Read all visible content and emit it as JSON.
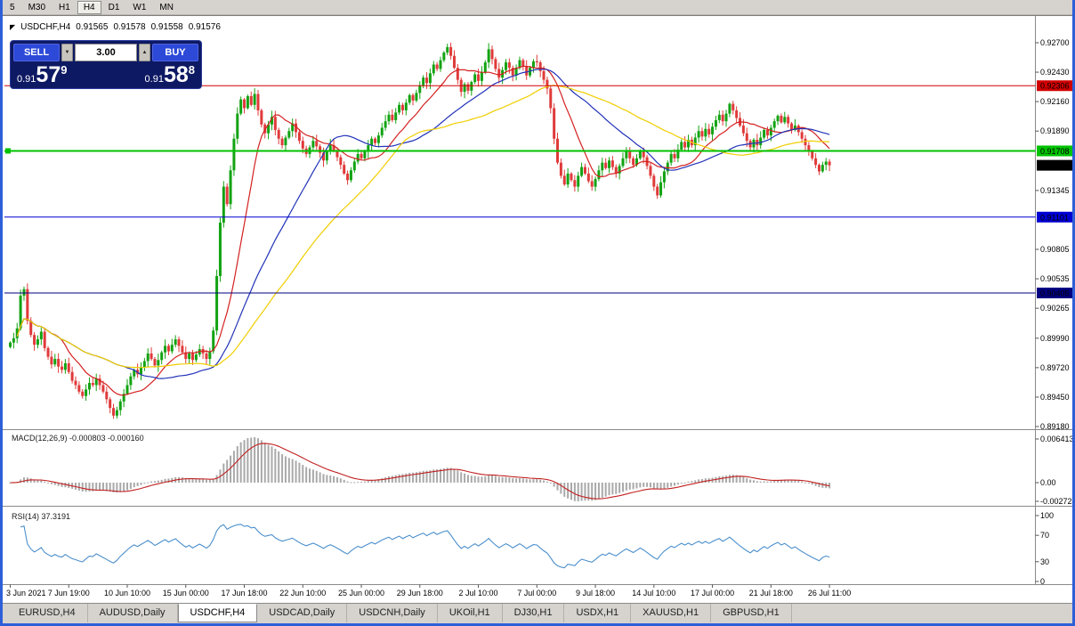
{
  "colors": {
    "frame": "#2e5fd8",
    "candle_up": "#12a312",
    "candle_down": "#e03a3a",
    "ma_fast": "#d42020",
    "ma_mid": "#2233b8",
    "ma_slow": "#f0ce00",
    "macd_histogram": "#a9a9a9",
    "macd_signal": "#c22020",
    "rsi_line": "#4b8fcc",
    "level_red": "#d00000",
    "level_green": "#00c200",
    "level_blue": "#0000d2",
    "level_navy": "#000080",
    "current_price_bg": "#000000"
  },
  "icons": {
    "panel_toggle": "◤",
    "spin_up": "▲",
    "spin_down": "▼"
  },
  "toolbar": {
    "timeframes": [
      "5",
      "M30",
      "H1",
      "H4",
      "D1",
      "W1",
      "MN"
    ],
    "active": "H4"
  },
  "chart": {
    "symbol_period": "USDCHF,H4",
    "ohlc": {
      "open": "0.91565",
      "high": "0.91578",
      "low": "0.91558",
      "close": "0.91576"
    },
    "one_click": {
      "sell_label": "SELL",
      "buy_label": "BUY",
      "volume": "3.00",
      "sell_price": {
        "small": "0.91",
        "big": "57",
        "sup": "9"
      },
      "buy_price": {
        "small": "0.91",
        "big": "58",
        "sup": "8"
      }
    },
    "price_axis_labels": [
      "0.92700",
      "0.92430",
      "0.92160",
      "0.91890",
      "0.91345",
      "0.90805",
      "0.90535",
      "0.90265",
      "0.89990",
      "0.89720",
      "0.89450",
      "0.89180"
    ],
    "time_axis_labels": [
      "3 Jun 2021",
      "7 Jun 19:00",
      "10 Jun 10:00",
      "15 Jun 00:00",
      "17 Jun 18:00",
      "22 Jun 10:00",
      "25 Jun 00:00",
      "29 Jun 18:00",
      "2 Jul 10:00",
      "7 Jul 00:00",
      "9 Jul 18:00",
      "14 Jul 10:00",
      "17 Jul 00:00",
      "21 Jul 18:00",
      "26 Jul 11:00"
    ]
  },
  "indicators": {
    "macd": {
      "label": "MACD(12,26,9) -0.000803 -0.000160",
      "axis_labels": [
        "0.006413",
        "0.00",
        "-0.002724"
      ]
    },
    "rsi": {
      "label": "RSI(14) 37.3191",
      "axis_labels": [
        "100",
        "70",
        "30",
        "0"
      ]
    }
  },
  "tabs": [
    "EURUSD,H4",
    "AUDUSD,Daily",
    "USDCHF,H4",
    "USDCAD,Daily",
    "USDCNH,Daily",
    "UKOil,H1",
    "DJ30,H1",
    "USDX,H1",
    "XAUUSD,H1",
    "GBPUSD,H1"
  ],
  "active_tab": "USDCHF,H4",
  "chart_data": {
    "type": "candlestick",
    "symbol": "USDCHF",
    "timeframe": "H4",
    "ylim": [
      0.8918,
      0.927
    ],
    "x_label_step": 17,
    "closes": [
      0.8995,
      0.8999,
      0.9008,
      0.9038,
      0.9044,
      0.9015,
      0.9002,
      0.8993,
      0.8998,
      0.9005,
      0.899,
      0.8982,
      0.8975,
      0.898,
      0.8973,
      0.897,
      0.8976,
      0.8968,
      0.896,
      0.8956,
      0.895,
      0.8946,
      0.8952,
      0.8958,
      0.8956,
      0.8962,
      0.8956,
      0.895,
      0.8943,
      0.8935,
      0.8928,
      0.8933,
      0.8941,
      0.8948,
      0.8956,
      0.8964,
      0.897,
      0.8966,
      0.8972,
      0.8978,
      0.8985,
      0.898,
      0.8974,
      0.8979,
      0.8986,
      0.8992,
      0.8987,
      0.8993,
      0.8998,
      0.8992,
      0.8986,
      0.898,
      0.8985,
      0.8979,
      0.8984,
      0.8989,
      0.8985,
      0.898,
      0.8987,
      0.9006,
      0.9056,
      0.9105,
      0.9138,
      0.9122,
      0.9153,
      0.9182,
      0.9205,
      0.9218,
      0.921,
      0.9221,
      0.9213,
      0.9223,
      0.9208,
      0.9195,
      0.9187,
      0.9195,
      0.9202,
      0.919,
      0.9182,
      0.9176,
      0.9183,
      0.9189,
      0.9196,
      0.9188,
      0.918,
      0.9173,
      0.9168,
      0.9174,
      0.918,
      0.9175,
      0.9169,
      0.9162,
      0.917,
      0.9176,
      0.9171,
      0.9165,
      0.9158,
      0.915,
      0.9144,
      0.9153,
      0.9161,
      0.9168,
      0.9164,
      0.917,
      0.9176,
      0.9182,
      0.9178,
      0.9185,
      0.9192,
      0.9198,
      0.9204,
      0.9199,
      0.9206,
      0.9213,
      0.9208,
      0.9215,
      0.9222,
      0.9217,
      0.9224,
      0.9231,
      0.9238,
      0.9233,
      0.9242,
      0.925,
      0.9246,
      0.9254,
      0.9261,
      0.9266,
      0.9258,
      0.9247,
      0.9236,
      0.9225,
      0.9232,
      0.9226,
      0.9234,
      0.9241,
      0.9235,
      0.9243,
      0.9252,
      0.9264,
      0.9255,
      0.9246,
      0.9238,
      0.9245,
      0.9252,
      0.9247,
      0.924,
      0.9247,
      0.9254,
      0.9248,
      0.924,
      0.9247,
      0.9253,
      0.9252,
      0.9244,
      0.9236,
      0.9228,
      0.921,
      0.9182,
      0.916,
      0.9148,
      0.914,
      0.915,
      0.9144,
      0.9138,
      0.9148,
      0.9156,
      0.915,
      0.9143,
      0.9138,
      0.9145,
      0.9153,
      0.916,
      0.9155,
      0.9162,
      0.9156,
      0.915,
      0.9157,
      0.9164,
      0.917,
      0.9164,
      0.9158,
      0.9164,
      0.9171,
      0.9165,
      0.9157,
      0.9148,
      0.9138,
      0.913,
      0.9142,
      0.9152,
      0.916,
      0.9168,
      0.9164,
      0.9172,
      0.9179,
      0.9174,
      0.9181,
      0.9176,
      0.9183,
      0.9189,
      0.9184,
      0.9191,
      0.9186,
      0.9193,
      0.9199,
      0.9204,
      0.9198,
      0.9205,
      0.9214,
      0.9208,
      0.9201,
      0.9194,
      0.9187,
      0.918,
      0.9174,
      0.9181,
      0.9176,
      0.9183,
      0.919,
      0.9185,
      0.9192,
      0.9198,
      0.9203,
      0.9197,
      0.9202,
      0.9196,
      0.919,
      0.9194,
      0.9188,
      0.9182,
      0.9176,
      0.917,
      0.9164,
      0.9158,
      0.9152,
      0.9158,
      0.9161,
      0.91576
    ],
    "levels": [
      {
        "price": 0.92306,
        "label": "0.92306",
        "color_key": "level_red",
        "width": 1,
        "marker": false
      },
      {
        "price": 0.91708,
        "label": "0.91708",
        "color_key": "level_green",
        "width": 2,
        "marker": true
      },
      {
        "price": 0.91101,
        "label": "0.91101",
        "color_key": "level_blue",
        "width": 1,
        "marker": false
      },
      {
        "price": 0.90405,
        "label": "0.90405",
        "color_key": "level_navy",
        "width": 1,
        "marker": false
      }
    ],
    "current_price": {
      "value": 0.91576,
      "label": "0.91576"
    },
    "moving_averages": [
      {
        "period": 13,
        "color_key": "ma_fast"
      },
      {
        "period": 34,
        "color_key": "ma_mid"
      },
      {
        "period": 55,
        "color_key": "ma_slow"
      }
    ],
    "macd": {
      "fast": 12,
      "slow": 26,
      "signal": 9
    },
    "rsi": {
      "period": 14
    }
  }
}
